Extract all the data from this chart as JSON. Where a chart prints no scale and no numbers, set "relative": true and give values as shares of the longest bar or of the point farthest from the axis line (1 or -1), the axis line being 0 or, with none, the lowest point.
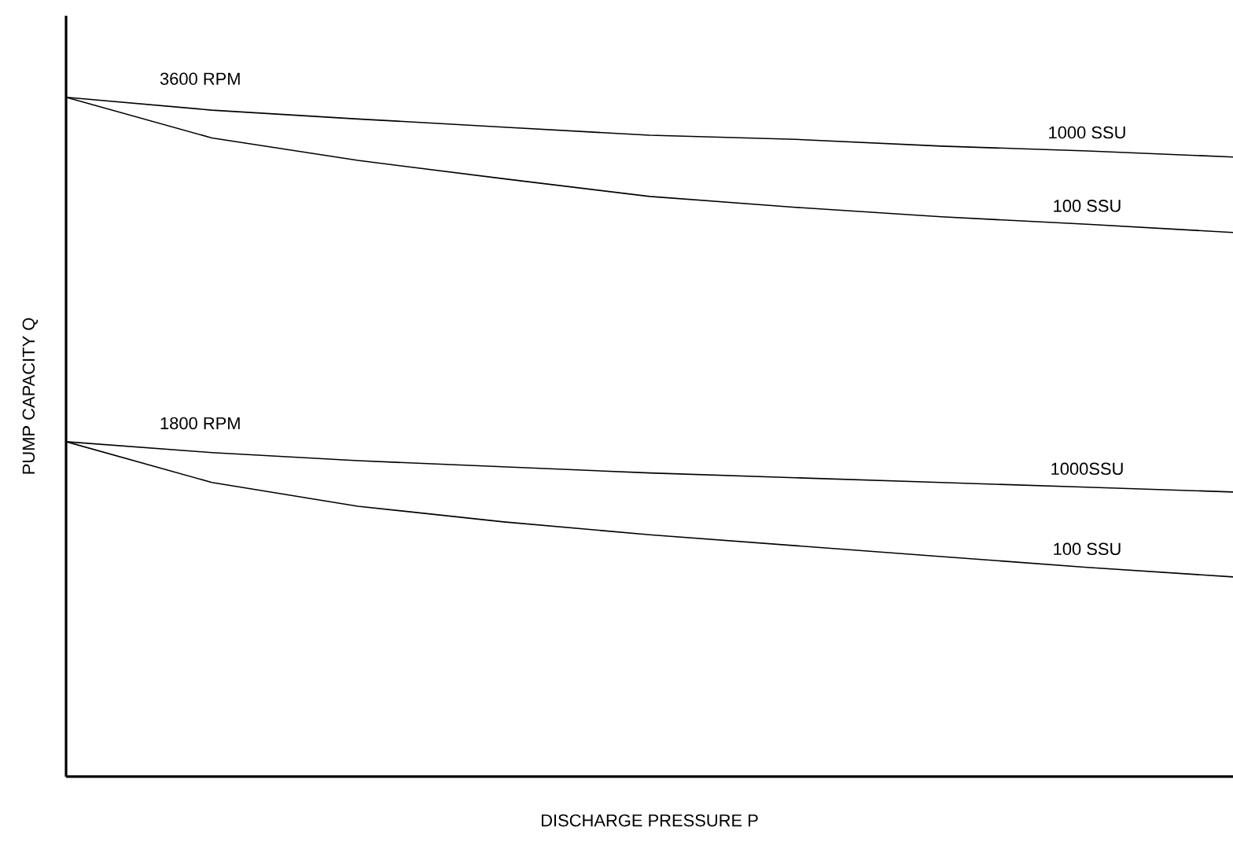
{
  "chart_data": {
    "type": "line",
    "relative": true,
    "xlabel": "DISCHARGE PRESSURE P",
    "ylabel": "PUMP CAPACITY Q",
    "categories": [
      null,
      null,
      null,
      null,
      null,
      null,
      null,
      null,
      null
    ],
    "series": [
      {
        "name": "1000 SSU",
        "color": "#000000",
        "values": [
          1,
          0.981,
          0.968,
          0.956,
          0.944,
          0.938,
          0.928,
          0.921,
          0.912
        ]
      },
      {
        "name": "100 SSU",
        "color": "#000000",
        "values": [
          1,
          0.94,
          0.907,
          0.88,
          0.854,
          0.838,
          0.824,
          0.813,
          0.801
        ]
      },
      {
        "name": "1000SSU",
        "color": "#000000",
        "values": [
          0.493,
          0.477,
          0.465,
          0.456,
          0.447,
          0.44,
          0.433,
          0.426,
          0.419
        ]
      },
      {
        "name": "100 SSU",
        "color": "#000000",
        "values": [
          0.493,
          0.433,
          0.398,
          0.375,
          0.356,
          0.34,
          0.324,
          0.308,
          0.294
        ]
      }
    ],
    "annotations": [
      "3600 RPM",
      "1800 RPM"
    ],
    "legend": false,
    "marker": "none",
    "line_style": "solid"
  }
}
